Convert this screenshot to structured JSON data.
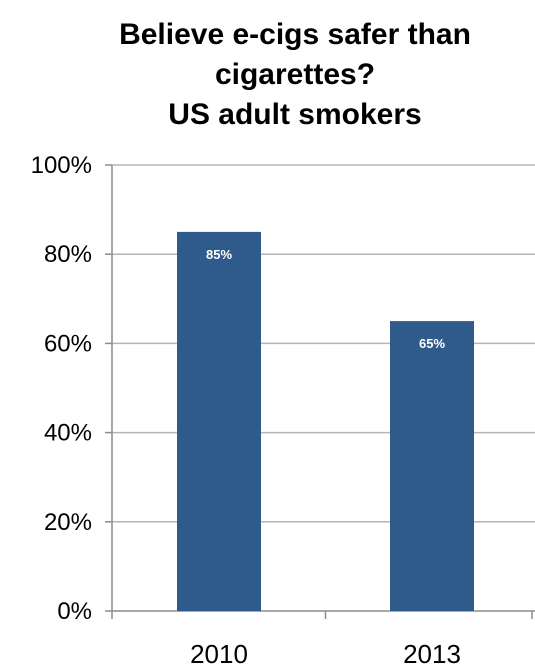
{
  "chart_data": {
    "type": "bar",
    "title": [
      "Believe e-cigs safer than",
      "cigarettes?",
      "US adult smokers"
    ],
    "categories": [
      "2010",
      "2013"
    ],
    "values": [
      85,
      65
    ],
    "data_labels": [
      "85%",
      "65%"
    ],
    "ylim": [
      0,
      100
    ],
    "yticks": [
      0,
      20,
      40,
      60,
      80,
      100
    ],
    "ytick_labels": [
      "0%",
      "20%",
      "40%",
      "60%",
      "80%",
      "100%"
    ],
    "grid": true,
    "legend": "none",
    "colors": {
      "bar": "#2e5a8c",
      "grid": "#b5b5b5",
      "axis": "#8c8c8c"
    }
  }
}
